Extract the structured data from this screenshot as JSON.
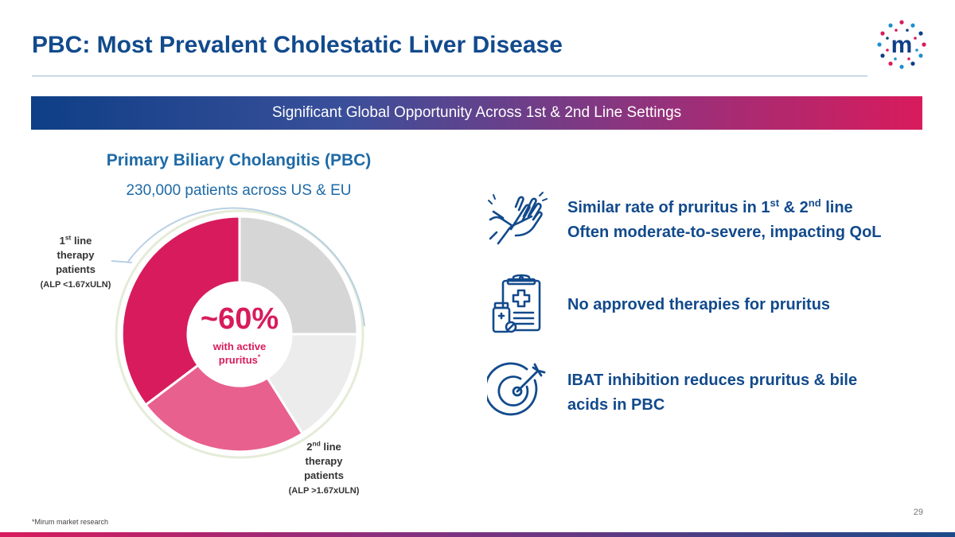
{
  "slide": {
    "title": "PBC: Most Prevalent Cholestatic Liver Disease",
    "banner": "Significant Global Opportunity Across 1st & 2nd Line Settings",
    "logo_letter": "m",
    "page_number": "29",
    "footnote": "*Mirum market research"
  },
  "left": {
    "title": "Primary Biliary Cholangitis (PBC)",
    "subtitle": "230,000 patients across US & EU",
    "center_value": "~60%",
    "center_label_line1": "with active",
    "center_label_line2": "pruritus",
    "center_label_mark": "*",
    "first_line": {
      "ordinal": "1",
      "ordinal_suffix": "st",
      "line1": " line",
      "line2": "therapy",
      "line3": "patients",
      "criterion": "(ALP <1.67xULN)"
    },
    "second_line": {
      "ordinal": "2",
      "ordinal_suffix": "nd",
      "line1": " line",
      "line2": "therapy",
      "line3": "patients",
      "criterion": "(ALP >1.67xULN)"
    }
  },
  "bullets": [
    {
      "icon": "scratching-hands-icon",
      "line1_a": "Similar rate of pruritus in 1",
      "line1_sup1": "st",
      "line1_b": " & 2",
      "line1_sup2": "nd",
      "line1_c": " line",
      "line2": "Often moderate-to-severe, impacting QoL"
    },
    {
      "icon": "medical-clipboard-icon",
      "line1": "No approved therapies for pruritus"
    },
    {
      "icon": "target-arrow-icon",
      "line1": "IBAT inhibition reduces pruritus & bile",
      "line2": "acids in PBC"
    }
  ],
  "colors": {
    "title": "#124a8c",
    "accent_pink": "#d81b5c",
    "first_line_segment": "#d81b5c",
    "second_line_segment": "#e8608e",
    "no_pruritus_first": "#d6d6d6",
    "no_pruritus_second": "#ececec",
    "banner_start": "#0e3f86",
    "banner_end": "#d81b5c"
  }
}
